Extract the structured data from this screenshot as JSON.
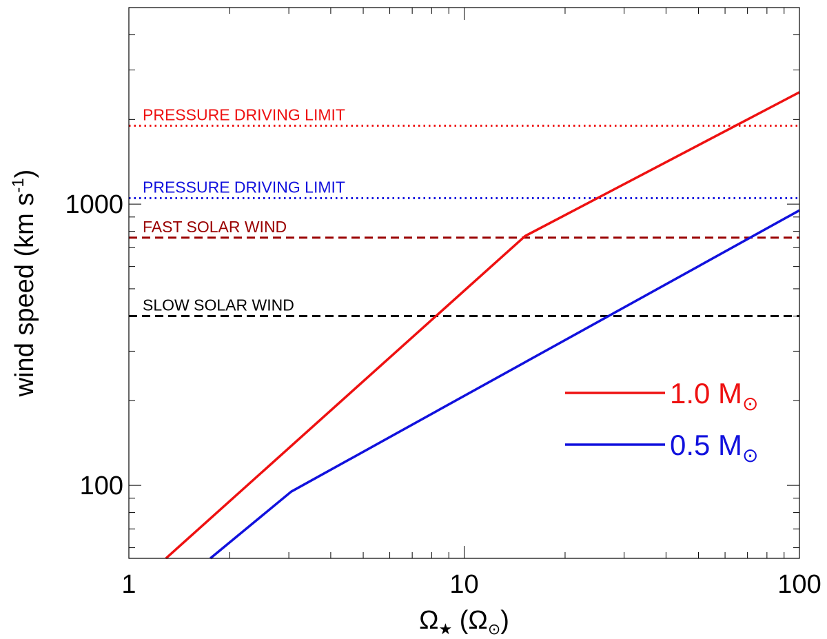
{
  "chart_data": {
    "type": "line",
    "x_scale": "log",
    "y_scale": "log",
    "xlim": [
      1,
      100
    ],
    "ylim": [
      55,
      5000
    ],
    "x_ticks": [
      1,
      10,
      100
    ],
    "x_tick_labels": [
      "1",
      "10",
      "100"
    ],
    "y_ticks": [
      100,
      1000
    ],
    "y_tick_labels": [
      "100",
      "1000"
    ],
    "ylabel": {
      "main": "wind speed (km s",
      "sup": "-1",
      "close": ")"
    },
    "xlabel": {
      "omega": "Ω",
      "star": "★",
      "open": " (Ω",
      "sun": "⊙",
      "close": ")"
    },
    "legend_position": "right",
    "series": [
      {
        "name": "1.0 M⊙",
        "label_main": "1.0 M",
        "label_sub": "⊙",
        "color": "#ee1111",
        "points": [
          [
            1.29,
            55
          ],
          [
            15.2,
            770
          ],
          [
            100,
            2500
          ]
        ]
      },
      {
        "name": "0.5 M⊙",
        "label_main": "0.5 M",
        "label_sub": "⊙",
        "color": "#1111dd",
        "points": [
          [
            1.75,
            55
          ],
          [
            3.05,
            95
          ],
          [
            100,
            950
          ]
        ]
      }
    ],
    "reference_lines": [
      {
        "label": "PRESSURE DRIVING LIMIT",
        "value": 1900,
        "style": "dotted",
        "color": "#ee1111"
      },
      {
        "label": "PRESSURE DRIVING LIMIT",
        "value": 1050,
        "style": "dotted",
        "color": "#1111dd"
      },
      {
        "label": "FAST SOLAR WIND",
        "value": 760,
        "style": "dashed",
        "color": "#990000"
      },
      {
        "label": "SLOW SOLAR WIND",
        "value": 400,
        "style": "dashed",
        "color": "#000000"
      }
    ]
  }
}
